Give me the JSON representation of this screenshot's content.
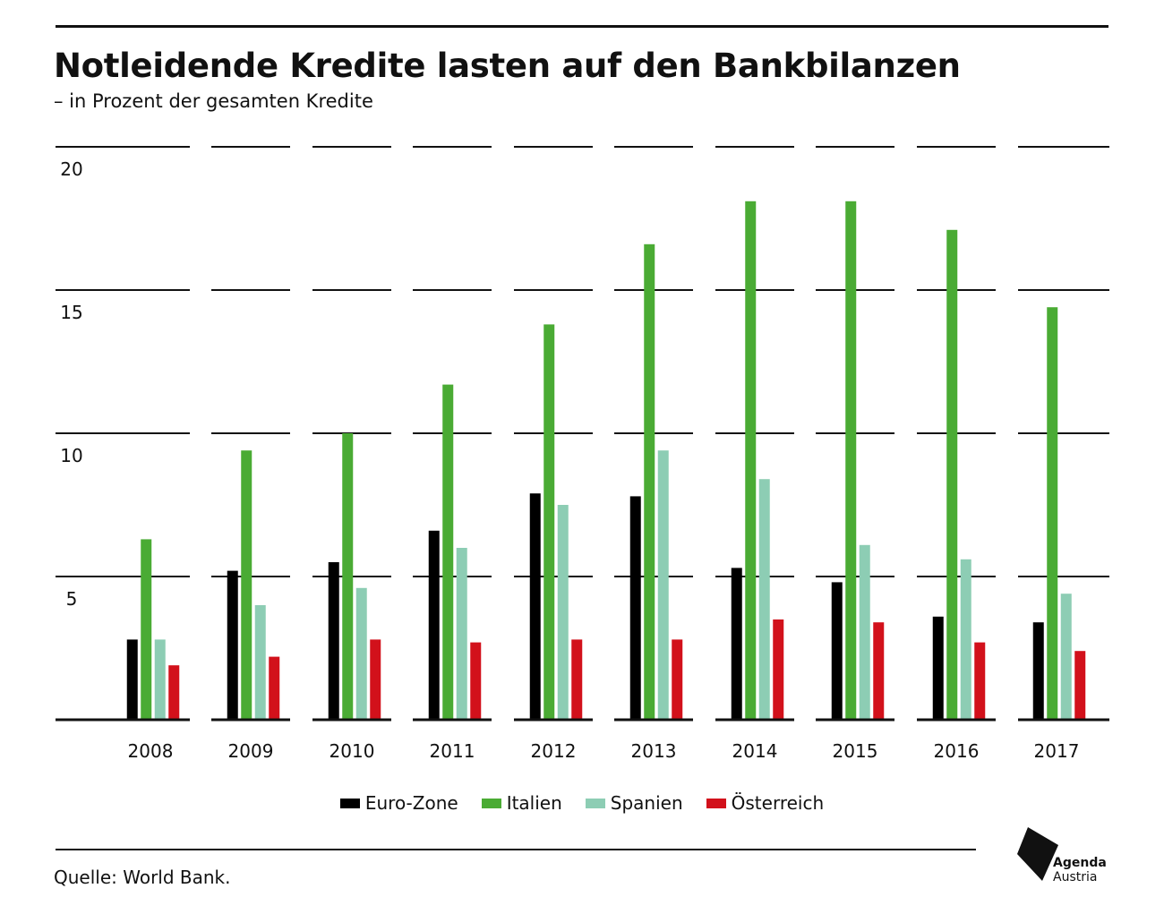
{
  "header": {
    "title": "Notleidende Kredite lasten auf den Bankbilanzen",
    "subtitle": "– in Prozent der gesamten Kredite"
  },
  "footer": {
    "source": "Quelle: World Bank.",
    "logo_line1": "Agenda",
    "logo_line2": "Austria"
  },
  "chart_data": {
    "type": "bar",
    "title": "Notleidende Kredite lasten auf den Bankbilanzen",
    "subtitle": "– in Prozent der gesamten Kredite",
    "categories": [
      "2008",
      "2009",
      "2010",
      "2011",
      "2012",
      "2013",
      "2014",
      "2015",
      "2016",
      "2017"
    ],
    "series": [
      {
        "name": "Euro-Zone",
        "color": "#000000",
        "values": [
          2.8,
          5.2,
          5.5,
          6.6,
          7.9,
          7.8,
          5.3,
          4.8,
          3.6,
          3.4
        ]
      },
      {
        "name": "Italien",
        "color": "#4aab34",
        "values": [
          6.3,
          9.4,
          10.0,
          11.7,
          13.8,
          16.6,
          18.1,
          18.1,
          17.1,
          14.4
        ]
      },
      {
        "name": "Spanien",
        "color": "#8dcdb4",
        "values": [
          2.8,
          4.0,
          4.6,
          6.0,
          7.5,
          9.4,
          8.4,
          6.1,
          5.6,
          4.4
        ]
      },
      {
        "name": "Österreich",
        "color": "#d2111b",
        "values": [
          1.9,
          2.2,
          2.8,
          2.7,
          2.8,
          2.8,
          3.5,
          3.4,
          2.7,
          2.4
        ]
      }
    ],
    "y_ticks": [
      "5",
      "10",
      "15",
      "20"
    ],
    "ylim": [
      0,
      20
    ],
    "grid": true,
    "legend_position": "bottom-center"
  }
}
